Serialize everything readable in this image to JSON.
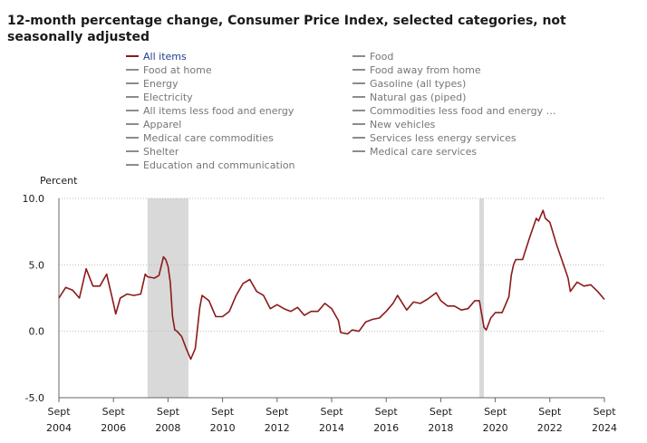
{
  "title": "12-month percentage change, Consumer Price Index, selected categories, not seasonally adjusted",
  "legend": {
    "left": [
      {
        "label": "All items",
        "active": true
      },
      {
        "label": "Food at home",
        "active": false
      },
      {
        "label": "Energy",
        "active": false
      },
      {
        "label": "Electricity",
        "active": false
      },
      {
        "label": "All items less food and energy",
        "active": false
      },
      {
        "label": "Apparel",
        "active": false
      },
      {
        "label": "Medical care commodities",
        "active": false
      },
      {
        "label": "Shelter",
        "active": false
      },
      {
        "label": "Education and communication",
        "active": false
      }
    ],
    "right": [
      {
        "label": "Food",
        "active": false
      },
      {
        "label": "Food away from home",
        "active": false
      },
      {
        "label": "Gasoline (all types)",
        "active": false
      },
      {
        "label": "Natural gas (piped)",
        "active": false
      },
      {
        "label": "Commodities less food and energy com...",
        "active": false
      },
      {
        "label": "New vehicles",
        "active": false
      },
      {
        "label": "Services less energy services",
        "active": false
      },
      {
        "label": "Medical care services",
        "active": false
      }
    ]
  },
  "colors": {
    "active_series": "#8b1a1a",
    "recession_band": "#d9d9d9",
    "inactive_swatch": "#8c8c8c",
    "active_legend_text": "#1f3f8c"
  },
  "chart_data": {
    "type": "line",
    "title": "12-month percentage change, Consumer Price Index, selected categories, not seasonally adjusted",
    "ylabel": "Percent",
    "xlabel": "",
    "ylim": [
      -5.0,
      10.0
    ],
    "yticks": [
      {
        "value": 10.0,
        "label": "10.0"
      },
      {
        "value": 5.0,
        "label": "5.0"
      },
      {
        "value": 0.0,
        "label": "0.0"
      },
      {
        "value": -5.0,
        "label": "-5.0"
      }
    ],
    "xlim": [
      "2004-09",
      "2024-09"
    ],
    "xticks": [
      {
        "date": "2004-09",
        "month": "Sept",
        "year": "2004"
      },
      {
        "date": "2006-09",
        "month": "Sept",
        "year": "2006"
      },
      {
        "date": "2008-09",
        "month": "Sept",
        "year": "2008"
      },
      {
        "date": "2010-09",
        "month": "Sept",
        "year": "2010"
      },
      {
        "date": "2012-09",
        "month": "Sept",
        "year": "2012"
      },
      {
        "date": "2014-09",
        "month": "Sept",
        "year": "2014"
      },
      {
        "date": "2016-09",
        "month": "Sept",
        "year": "2016"
      },
      {
        "date": "2018-09",
        "month": "Sept",
        "year": "2018"
      },
      {
        "date": "2020-09",
        "month": "Sept",
        "year": "2020"
      },
      {
        "date": "2022-09",
        "month": "Sept",
        "year": "2022"
      },
      {
        "date": "2024-09",
        "month": "Sept",
        "year": "2024"
      }
    ],
    "grid": "horizontal-dotted",
    "shaded_periods": [
      {
        "start": "2007-12",
        "end": "2009-06"
      },
      {
        "start": "2020-02",
        "end": "2020-04"
      }
    ],
    "series": [
      {
        "name": "All items",
        "points": [
          [
            "2004-09",
            2.5
          ],
          [
            "2004-12",
            3.3
          ],
          [
            "2005-03",
            3.1
          ],
          [
            "2005-06",
            2.5
          ],
          [
            "2005-09",
            4.7
          ],
          [
            "2005-12",
            3.4
          ],
          [
            "2006-03",
            3.4
          ],
          [
            "2006-06",
            4.3
          ],
          [
            "2006-09",
            2.1
          ],
          [
            "2006-10",
            1.3
          ],
          [
            "2006-12",
            2.5
          ],
          [
            "2007-03",
            2.8
          ],
          [
            "2007-06",
            2.7
          ],
          [
            "2007-09",
            2.8
          ],
          [
            "2007-11",
            4.3
          ],
          [
            "2007-12",
            4.1
          ],
          [
            "2008-03",
            4.0
          ],
          [
            "2008-05",
            4.2
          ],
          [
            "2008-07",
            5.6
          ],
          [
            "2008-08",
            5.4
          ],
          [
            "2008-09",
            4.9
          ],
          [
            "2008-10",
            3.7
          ],
          [
            "2008-11",
            1.1
          ],
          [
            "2008-12",
            0.1
          ],
          [
            "2009-01",
            0.0
          ],
          [
            "2009-03",
            -0.4
          ],
          [
            "2009-05",
            -1.3
          ],
          [
            "2009-07",
            -2.1
          ],
          [
            "2009-09",
            -1.3
          ],
          [
            "2009-11",
            1.8
          ],
          [
            "2009-12",
            2.7
          ],
          [
            "2010-03",
            2.3
          ],
          [
            "2010-06",
            1.1
          ],
          [
            "2010-09",
            1.1
          ],
          [
            "2010-12",
            1.5
          ],
          [
            "2011-03",
            2.7
          ],
          [
            "2011-06",
            3.6
          ],
          [
            "2011-09",
            3.9
          ],
          [
            "2011-12",
            3.0
          ],
          [
            "2012-03",
            2.7
          ],
          [
            "2012-06",
            1.7
          ],
          [
            "2012-09",
            2.0
          ],
          [
            "2012-12",
            1.7
          ],
          [
            "2013-03",
            1.5
          ],
          [
            "2013-06",
            1.8
          ],
          [
            "2013-09",
            1.2
          ],
          [
            "2013-12",
            1.5
          ],
          [
            "2014-03",
            1.5
          ],
          [
            "2014-06",
            2.1
          ],
          [
            "2014-09",
            1.7
          ],
          [
            "2014-12",
            0.8
          ],
          [
            "2015-01",
            -0.1
          ],
          [
            "2015-04",
            -0.2
          ],
          [
            "2015-06",
            0.1
          ],
          [
            "2015-09",
            0.0
          ],
          [
            "2015-12",
            0.7
          ],
          [
            "2016-03",
            0.9
          ],
          [
            "2016-06",
            1.0
          ],
          [
            "2016-09",
            1.5
          ],
          [
            "2016-12",
            2.1
          ],
          [
            "2017-02",
            2.7
          ],
          [
            "2017-06",
            1.6
          ],
          [
            "2017-09",
            2.2
          ],
          [
            "2017-12",
            2.1
          ],
          [
            "2018-03",
            2.4
          ],
          [
            "2018-07",
            2.9
          ],
          [
            "2018-09",
            2.3
          ],
          [
            "2018-12",
            1.9
          ],
          [
            "2019-03",
            1.9
          ],
          [
            "2019-06",
            1.6
          ],
          [
            "2019-09",
            1.7
          ],
          [
            "2019-12",
            2.3
          ],
          [
            "2020-02",
            2.3
          ],
          [
            "2020-04",
            0.3
          ],
          [
            "2020-05",
            0.1
          ],
          [
            "2020-07",
            1.0
          ],
          [
            "2020-09",
            1.4
          ],
          [
            "2020-12",
            1.4
          ],
          [
            "2021-03",
            2.6
          ],
          [
            "2021-04",
            4.2
          ],
          [
            "2021-05",
            5.0
          ],
          [
            "2021-06",
            5.4
          ],
          [
            "2021-09",
            5.4
          ],
          [
            "2021-12",
            7.0
          ],
          [
            "2022-03",
            8.5
          ],
          [
            "2022-04",
            8.3
          ],
          [
            "2022-06",
            9.1
          ],
          [
            "2022-07",
            8.5
          ],
          [
            "2022-09",
            8.2
          ],
          [
            "2022-12",
            6.5
          ],
          [
            "2023-03",
            5.0
          ],
          [
            "2023-05",
            4.0
          ],
          [
            "2023-06",
            3.0
          ],
          [
            "2023-09",
            3.7
          ],
          [
            "2023-12",
            3.4
          ],
          [
            "2024-03",
            3.5
          ],
          [
            "2024-06",
            3.0
          ],
          [
            "2024-09",
            2.4
          ]
        ]
      }
    ]
  }
}
